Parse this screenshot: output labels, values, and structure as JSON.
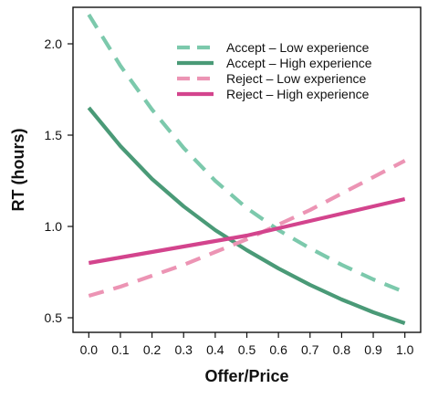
{
  "chart_data": {
    "type": "line",
    "xlabel": "Offer/Price",
    "ylabel": "RT (hours)",
    "xlim": [
      -0.05,
      1.05
    ],
    "ylim": [
      0.42,
      2.2
    ],
    "x_ticks": [
      "0.0",
      "0.1",
      "0.2",
      "0.3",
      "0.4",
      "0.5",
      "0.6",
      "0.7",
      "0.8",
      "0.9",
      "1.0"
    ],
    "y_ticks": [
      "0.5",
      "1.0",
      "1.5",
      "2.0"
    ],
    "grid": false,
    "legend_position": "top-right",
    "x": [
      0.0,
      0.1,
      0.2,
      0.3,
      0.4,
      0.5,
      0.6,
      0.7,
      0.8,
      0.9,
      1.0
    ],
    "series": [
      {
        "name": "Accept – Low experience",
        "color": "#7cc9ac",
        "style": "dashed",
        "values": [
          2.16,
          1.88,
          1.64,
          1.43,
          1.25,
          1.1,
          0.98,
          0.88,
          0.79,
          0.71,
          0.64
        ]
      },
      {
        "name": "Accept – High experience",
        "color": "#4a9a77",
        "style": "solid",
        "values": [
          1.65,
          1.44,
          1.26,
          1.11,
          0.98,
          0.87,
          0.77,
          0.68,
          0.6,
          0.53,
          0.47
        ]
      },
      {
        "name": "Reject – Low experience",
        "color": "#ec94b4",
        "style": "dashed",
        "values": [
          0.62,
          0.67,
          0.73,
          0.79,
          0.86,
          0.93,
          1.01,
          1.09,
          1.18,
          1.27,
          1.36
        ]
      },
      {
        "name": "Reject – High experience",
        "color": "#d3448d",
        "style": "solid",
        "values": [
          0.8,
          0.83,
          0.86,
          0.89,
          0.92,
          0.95,
          0.99,
          1.03,
          1.07,
          1.11,
          1.15
        ]
      }
    ]
  }
}
